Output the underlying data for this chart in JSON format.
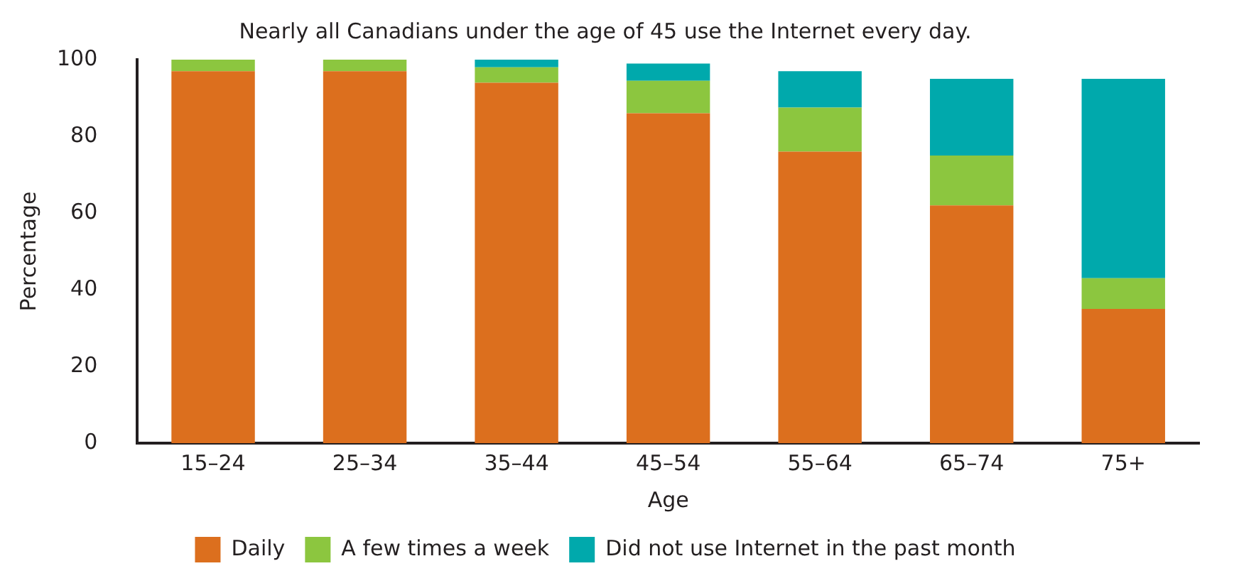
{
  "chart_data": {
    "type": "bar",
    "title": "Nearly all Canadians under the age of 45 use the Internet every day.",
    "xlabel": "Age",
    "ylabel": "Percentage",
    "categories": [
      "15–24",
      "25–34",
      "35–44",
      "45–54",
      "55–64",
      "65–74",
      "75+"
    ],
    "stacked": true,
    "series": [
      {
        "name": "Daily",
        "color": "#dc6f1e",
        "values": [
          97,
          97,
          94,
          86,
          76,
          62,
          35
        ]
      },
      {
        "name": "A few times a week",
        "color": "#8cc63f",
        "values": [
          3,
          3,
          4,
          8.5,
          11.5,
          13,
          8
        ]
      },
      {
        "name": "Did not use Internet in the past month",
        "color": "#00a9ac",
        "values": [
          null,
          null,
          2,
          4.5,
          9.5,
          20,
          52
        ]
      }
    ],
    "ylim": [
      0,
      100
    ],
    "yticks": [
      0,
      20,
      40,
      60,
      80,
      100
    ],
    "grid": false,
    "legend": "bottom"
  }
}
